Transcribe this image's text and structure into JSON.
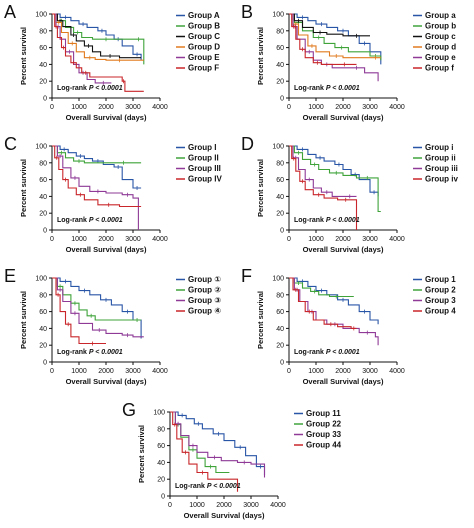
{
  "chart_data": [
    {
      "panel_label": "A",
      "type": "line",
      "ylabel": "Percent survival",
      "xlabel": "Overall Survival (days)",
      "xlim": [
        0,
        4000
      ],
      "ylim": [
        0,
        100
      ],
      "xticks": [
        0,
        1000,
        2000,
        3000,
        4000
      ],
      "yticks": [
        0,
        20,
        40,
        60,
        80,
        100
      ],
      "annotation_prefix": "Log-rank",
      "annotation_p": "P < 0.0001",
      "legend_position": "right",
      "series": [
        {
          "name": "Group A",
          "color": "#2855a6",
          "x": [
            0,
            300,
            700,
            1000,
            1300,
            1700,
            2000,
            2300,
            2600,
            3000,
            3300
          ],
          "y": [
            100,
            96,
            92,
            88,
            84,
            80,
            75,
            70,
            62,
            52,
            45
          ]
        },
        {
          "name": "Group B",
          "color": "#3fa33a",
          "x": [
            0,
            200,
            500,
            800,
            1100,
            1500,
            2500,
            3000,
            3400
          ],
          "y": [
            100,
            92,
            84,
            78,
            72,
            70,
            70,
            70,
            40
          ]
        },
        {
          "name": "Group C",
          "color": "#111111",
          "x": [
            0,
            200,
            400,
            700,
            900,
            1200,
            1500,
            1800,
            2500,
            3300
          ],
          "y": [
            100,
            92,
            85,
            75,
            68,
            62,
            55,
            50,
            48,
            48
          ]
        },
        {
          "name": "Group D",
          "color": "#e07b1f",
          "x": [
            0,
            150,
            350,
            600,
            900,
            1200,
            1600,
            2000,
            3000,
            3400
          ],
          "y": [
            100,
            90,
            78,
            65,
            55,
            48,
            46,
            45,
            45,
            45
          ]
        },
        {
          "name": "Group E",
          "color": "#8e3a96",
          "x": [
            0,
            150,
            300,
            500,
            800,
            1000,
            1300,
            1600,
            2200
          ],
          "y": [
            100,
            85,
            70,
            55,
            40,
            30,
            22,
            18,
            18
          ]
        },
        {
          "name": "Group F",
          "color": "#c8262a",
          "x": [
            0,
            100,
            200,
            350,
            500,
            700,
            900,
            1100,
            1400,
            2600,
            2700,
            3400
          ],
          "y": [
            100,
            85,
            72,
            60,
            50,
            42,
            36,
            30,
            25,
            20,
            8,
            8
          ]
        }
      ]
    },
    {
      "panel_label": "B",
      "type": "line",
      "ylabel": "Percent survival",
      "xlabel": "Overall Survival (days)",
      "xlim": [
        0,
        4000
      ],
      "ylim": [
        0,
        100
      ],
      "xticks": [
        0,
        1000,
        2000,
        3000,
        4000
      ],
      "yticks": [
        0,
        20,
        40,
        60,
        80,
        100
      ],
      "annotation_prefix": "Log-rank",
      "annotation_p": "P < 0.0001",
      "legend_position": "right",
      "series": [
        {
          "name": "Group a",
          "color": "#2855a6",
          "x": [
            0,
            300,
            700,
            1000,
            1400,
            1800,
            2200,
            2600,
            3000,
            3400
          ],
          "y": [
            100,
            96,
            92,
            88,
            84,
            80,
            74,
            65,
            55,
            40
          ]
        },
        {
          "name": "Group b",
          "color": "#3fa33a",
          "x": [
            0,
            200,
            500,
            900,
            1300,
            1700,
            2200,
            3000,
            3400
          ],
          "y": [
            100,
            90,
            80,
            72,
            65,
            60,
            55,
            50,
            45
          ]
        },
        {
          "name": "Group c",
          "color": "#111111",
          "x": [
            0,
            200,
            500,
            900,
            1400,
            2000,
            3000
          ],
          "y": [
            100,
            92,
            84,
            78,
            76,
            74,
            74
          ]
        },
        {
          "name": "Group d",
          "color": "#e07b1f",
          "x": [
            0,
            150,
            350,
            700,
            1000,
            1500,
            2000,
            3000,
            3400
          ],
          "y": [
            100,
            88,
            75,
            62,
            55,
            50,
            48,
            48,
            48
          ]
        },
        {
          "name": "Group e",
          "color": "#8e3a96",
          "x": [
            0,
            150,
            300,
            600,
            900,
            1200,
            1600,
            2200,
            2800,
            3300
          ],
          "y": [
            100,
            85,
            70,
            55,
            45,
            40,
            36,
            36,
            30,
            20
          ]
        },
        {
          "name": "Group f",
          "color": "#c8262a",
          "x": [
            0,
            100,
            250,
            400,
            600,
            900,
            1200,
            1600,
            2500
          ],
          "y": [
            100,
            85,
            70,
            58,
            48,
            42,
            40,
            40,
            40
          ]
        }
      ]
    },
    {
      "panel_label": "C",
      "type": "line",
      "ylabel": "Percent survival",
      "xlabel": "Overall Survival (days)",
      "xlim": [
        0,
        4000
      ],
      "ylim": [
        0,
        100
      ],
      "xticks": [
        0,
        1000,
        2000,
        3000,
        4000
      ],
      "yticks": [
        0,
        20,
        40,
        60,
        80,
        100
      ],
      "annotation_prefix": "Log-rank",
      "annotation_p": "P < 0.0001",
      "legend_position": "right",
      "series": [
        {
          "name": "Group I",
          "color": "#2855a6",
          "x": [
            0,
            300,
            600,
            900,
            1200,
            1500,
            1900,
            2300,
            2600,
            3000,
            3300
          ],
          "y": [
            100,
            96,
            92,
            88,
            85,
            82,
            78,
            75,
            60,
            50,
            50
          ]
        },
        {
          "name": "Group II",
          "color": "#3fa33a",
          "x": [
            0,
            200,
            500,
            800,
            1200,
            2000,
            3300
          ],
          "y": [
            100,
            92,
            86,
            82,
            80,
            80,
            80
          ]
        },
        {
          "name": "Group III",
          "color": "#8e3a96",
          "x": [
            0,
            200,
            400,
            700,
            1000,
            1400,
            2000,
            2600,
            3000,
            3200
          ],
          "y": [
            100,
            88,
            74,
            62,
            52,
            46,
            44,
            42,
            38,
            0
          ]
        },
        {
          "name": "Group IV",
          "color": "#c8262a",
          "x": [
            0,
            100,
            250,
            400,
            600,
            900,
            1200,
            1700,
            2500,
            3300
          ],
          "y": [
            100,
            86,
            72,
            60,
            50,
            42,
            36,
            30,
            28,
            28
          ]
        }
      ]
    },
    {
      "panel_label": "D",
      "type": "line",
      "ylabel": "Percent survival",
      "xlabel": "Overall Survival (days)",
      "xlim": [
        0,
        4000
      ],
      "ylim": [
        0,
        100
      ],
      "xticks": [
        0,
        1000,
        2000,
        3000,
        4000
      ],
      "yticks": [
        0,
        20,
        40,
        60,
        80,
        100
      ],
      "annotation_prefix": "Log-rank",
      "annotation_p": "P < 0.0001",
      "legend_position": "right",
      "series": [
        {
          "name": "Group i",
          "color": "#2855a6",
          "x": [
            0,
            300,
            700,
            1000,
            1300,
            1700,
            2000,
            2300,
            2600,
            3000,
            3300
          ],
          "y": [
            100,
            96,
            90,
            86,
            82,
            78,
            72,
            66,
            60,
            45,
            40
          ]
        },
        {
          "name": "Group ii",
          "color": "#3fa33a",
          "x": [
            0,
            200,
            500,
            800,
            1100,
            1500,
            2000,
            2500,
            3300,
            3400
          ],
          "y": [
            100,
            92,
            84,
            78,
            72,
            68,
            65,
            62,
            22,
            22
          ]
        },
        {
          "name": "Group iii",
          "color": "#8e3a96",
          "x": [
            0,
            150,
            350,
            600,
            900,
            1200,
            1600,
            2000,
            2500
          ],
          "y": [
            100,
            86,
            72,
            60,
            50,
            45,
            40,
            40,
            40
          ]
        },
        {
          "name": "Group iv",
          "color": "#c8262a",
          "x": [
            0,
            100,
            250,
            400,
            600,
            900,
            1300,
            1800,
            2400,
            2500
          ],
          "y": [
            100,
            85,
            70,
            58,
            48,
            42,
            38,
            36,
            36,
            0
          ]
        }
      ]
    },
    {
      "panel_label": "E",
      "type": "line",
      "ylabel": "Percent survival",
      "xlabel": "Overall Survival (days)",
      "xlim": [
        0,
        4000
      ],
      "ylim": [
        0,
        100
      ],
      "xticks": [
        0,
        1000,
        2000,
        3000,
        4000
      ],
      "yticks": [
        0,
        20,
        40,
        60,
        80,
        100
      ],
      "annotation_prefix": "Log-rank",
      "annotation_p": "P < 0.0001",
      "legend_position": "right",
      "series": [
        {
          "name": "Group ①",
          "color": "#2855a6",
          "x": [
            0,
            300,
            700,
            1000,
            1400,
            1800,
            2200,
            2600,
            3000,
            3300
          ],
          "y": [
            100,
            96,
            90,
            85,
            80,
            74,
            68,
            60,
            50,
            28
          ]
        },
        {
          "name": "Group ②",
          "color": "#3fa33a",
          "x": [
            0,
            200,
            400,
            700,
            1000,
            1300,
            1600,
            3000,
            3300
          ],
          "y": [
            100,
            90,
            80,
            70,
            62,
            55,
            50,
            50,
            50
          ]
        },
        {
          "name": "Group ③",
          "color": "#8e3a96",
          "x": [
            0,
            200,
            400,
            700,
            1000,
            1500,
            2000,
            2600,
            3000,
            3400
          ],
          "y": [
            100,
            86,
            72,
            58,
            46,
            38,
            34,
            32,
            30,
            30
          ]
        },
        {
          "name": "Group ④",
          "color": "#c8262a",
          "x": [
            0,
            150,
            300,
            500,
            700,
            1000,
            2000
          ],
          "y": [
            100,
            80,
            60,
            45,
            30,
            22,
            22
          ]
        }
      ]
    },
    {
      "panel_label": "F",
      "type": "line",
      "ylabel": "Percent survival",
      "xlabel": "Overall Survival (days)",
      "xlim": [
        0,
        4000
      ],
      "ylim": [
        0,
        100
      ],
      "xticks": [
        0,
        1000,
        2000,
        3000,
        4000
      ],
      "yticks": [
        0,
        20,
        40,
        60,
        80,
        100
      ],
      "annotation_prefix": "Log-rank",
      "annotation_p": "P < 0.0001",
      "legend_position": "right",
      "series": [
        {
          "name": "Group 1",
          "color": "#2855a6",
          "x": [
            0,
            300,
            700,
            1000,
            1400,
            1800,
            2200,
            2600,
            3000,
            3300
          ],
          "y": [
            100,
            96,
            90,
            85,
            80,
            74,
            68,
            60,
            50,
            45
          ]
        },
        {
          "name": "Group 2",
          "color": "#3fa33a",
          "x": [
            0,
            200,
            500,
            800,
            1100,
            1500,
            2000,
            2400
          ],
          "y": [
            100,
            94,
            88,
            84,
            80,
            78,
            78,
            78
          ]
        },
        {
          "name": "Group 3",
          "color": "#8e3a96",
          "x": [
            0,
            200,
            400,
            700,
            1000,
            1400,
            2000,
            2600,
            3200,
            3300
          ],
          "y": [
            100,
            86,
            72,
            60,
            50,
            45,
            40,
            35,
            30,
            20
          ]
        },
        {
          "name": "Group 4",
          "color": "#c8262a",
          "x": [
            0,
            150,
            350,
            600,
            900,
            1300,
            1800,
            2300,
            2500
          ],
          "y": [
            100,
            86,
            72,
            60,
            50,
            45,
            42,
            40,
            40
          ]
        }
      ]
    },
    {
      "panel_label": "G",
      "type": "line",
      "ylabel": "Percent survival",
      "xlabel": "Overall Survival (days)",
      "xlim": [
        0,
        4000
      ],
      "ylim": [
        0,
        100
      ],
      "xticks": [
        0,
        1000,
        2000,
        3000,
        4000
      ],
      "yticks": [
        0,
        20,
        40,
        60,
        80,
        100
      ],
      "annotation_prefix": "Log-rank",
      "annotation_p": "P < 0.0001",
      "legend_position": "right",
      "series": [
        {
          "name": "Group 11",
          "color": "#2855a6",
          "x": [
            0,
            300,
            600,
            900,
            1200,
            1600,
            2000,
            2400,
            2800,
            3200,
            3500
          ],
          "y": [
            100,
            96,
            92,
            86,
            80,
            74,
            66,
            58,
            48,
            35,
            25
          ]
        },
        {
          "name": "Group 22",
          "color": "#3fa33a",
          "x": [
            0,
            200,
            400,
            700,
            1000,
            1300,
            1700,
            2200
          ],
          "y": [
            100,
            85,
            70,
            55,
            45,
            35,
            28,
            28
          ]
        },
        {
          "name": "Group 33",
          "color": "#8e3a96",
          "x": [
            0,
            200,
            400,
            700,
            1000,
            1400,
            1900,
            2500,
            3000,
            3500
          ],
          "y": [
            100,
            86,
            72,
            60,
            52,
            46,
            42,
            40,
            38,
            22
          ]
        },
        {
          "name": "Group 44",
          "color": "#c8262a",
          "x": [
            0,
            100,
            250,
            450,
            700,
            1000,
            1400,
            2500
          ],
          "y": [
            100,
            85,
            68,
            52,
            38,
            28,
            20,
            5
          ]
        }
      ]
    }
  ]
}
